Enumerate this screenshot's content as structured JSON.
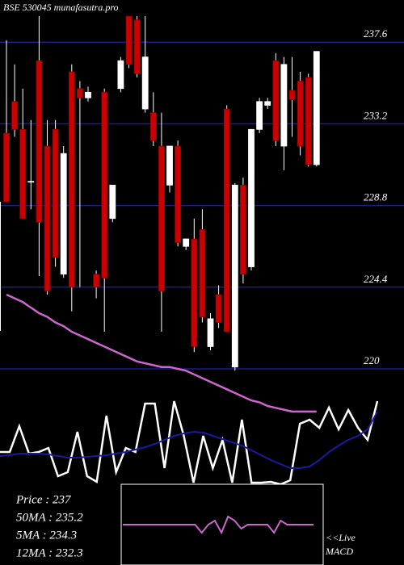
{
  "chart_data": [
    {
      "type": "candlestick",
      "title": "BSE 530045 munafasutra.pro",
      "ylim": [
        219.87,
        239.87
      ],
      "yticks": [
        237.6,
        233.2,
        228.8,
        224.4,
        220
      ],
      "grid": true,
      "up_color": "#ffffff",
      "down_color": "#cc0000",
      "grid_color": "#1c1c8a",
      "open": [
        232.7,
        234.4,
        232.9,
        230.1,
        236.6,
        232.0,
        232.9,
        225.1,
        236.0,
        235.1,
        234.6,
        225.1,
        234.9,
        228.1,
        235.1,
        239.0,
        238.8,
        234.0,
        233.8,
        232.0,
        229.9,
        232.0,
        226.6,
        227.0,
        227.5,
        221.2,
        224.0,
        234.0,
        220.1,
        229.9,
        225.5,
        232.9,
        234.2,
        236.6,
        232.0,
        235.0,
        235.5,
        235.7,
        231.0
      ],
      "high": [
        237.7,
        236.4,
        235.1,
        233.4,
        239.0,
        233.4,
        233.4,
        232.0,
        236.4,
        235.5,
        235.2,
        225.3,
        235.1,
        229.9,
        236.8,
        239.0,
        239.0,
        239.0,
        234.9,
        233.8,
        232.0,
        232.3,
        227.0,
        228.1,
        228.6,
        223.0,
        224.5,
        234.2,
        230.0,
        230.3,
        232.9,
        234.6,
        234.6,
        237.0,
        236.8,
        236.8,
        236.0,
        235.9,
        237.1
      ],
      "low": [
        229.0,
        232.5,
        228.1,
        228.6,
        225.0,
        224.0,
        225.5,
        224.9,
        223.1,
        224.4,
        234.4,
        223.8,
        222.0,
        227.9,
        234.9,
        236.2,
        235.7,
        233.8,
        232.0,
        222.0,
        229.5,
        226.6,
        226.4,
        220.9,
        222.5,
        221.0,
        222.2,
        222.0,
        219.9,
        224.6,
        225.3,
        232.7,
        234.0,
        232.0,
        230.7,
        232.5,
        231.5,
        230.9,
        230.9
      ],
      "close": [
        229.0,
        232.9,
        228.1,
        230.1,
        227.9,
        224.2,
        226.0,
        231.6,
        224.4,
        234.6,
        234.9,
        224.4,
        224.9,
        229.9,
        236.6,
        236.4,
        235.9,
        236.8,
        232.3,
        224.2,
        232.0,
        226.8,
        227.0,
        221.2,
        222.8,
        222.7,
        222.5,
        222.0,
        229.9,
        225.1,
        232.9,
        234.4,
        234.4,
        232.3,
        236.4,
        234.5,
        232.0,
        231.0,
        237.1
      ],
      "lines": [
        {
          "color": "#cc66cc",
          "values": [
            224.0,
            223.8,
            223.6,
            223.3,
            223.0,
            222.8,
            222.5,
            222.3,
            222.0,
            221.8,
            221.6,
            221.4,
            221.2,
            221.0,
            220.8,
            220.6,
            220.4,
            220.3,
            220.2,
            220.1,
            220.1,
            220.0,
            219.9,
            219.7,
            219.5,
            219.3,
            219.1,
            218.9,
            218.7,
            218.5,
            218.3,
            218.2,
            218.0,
            217.9,
            217.8,
            217.7,
            217.7,
            217.7,
            217.7
          ]
        }
      ]
    },
    {
      "type": "line",
      "ylim": [
        0,
        130
      ],
      "lines": [
        {
          "color": "#ffffff",
          "values": [
            40,
            40,
            72,
            38,
            40,
            45,
            10,
            15,
            65,
            10,
            3,
            85,
            15,
            45,
            40,
            100,
            100,
            20,
            103,
            60,
            2,
            60,
            20,
            55,
            2,
            80,
            2,
            2,
            3,
            0,
            5,
            75,
            80,
            70,
            95,
            68,
            92,
            70,
            55,
            103
          ]
        },
        {
          "color": "#1a1aa0",
          "values": [
            35,
            36,
            38,
            38,
            38,
            37,
            35,
            33,
            33,
            34,
            35,
            36,
            38,
            40,
            43,
            46,
            50,
            55,
            60,
            63,
            65,
            64,
            60,
            56,
            52,
            48,
            42,
            36,
            30,
            25,
            20,
            20,
            22,
            30,
            40,
            48,
            55,
            60,
            68,
            90
          ]
        }
      ]
    },
    {
      "type": "macd",
      "ylim": [
        -10,
        10
      ],
      "label_live": "<<Live",
      "label": "MACD",
      "stats": [
        "Price  :  237",
        "50MA : 235.2",
        "5MA : 234.3",
        "12MA : 232.3"
      ],
      "lines": [
        {
          "color": "#cc66cc",
          "values": [
            0,
            0,
            0,
            0,
            0,
            0,
            0,
            0,
            0,
            0,
            0,
            0,
            -2,
            0,
            1,
            -2,
            2,
            1,
            -1,
            0,
            0,
            0,
            0,
            -2,
            1,
            0,
            0,
            0,
            0,
            0
          ]
        }
      ]
    }
  ]
}
